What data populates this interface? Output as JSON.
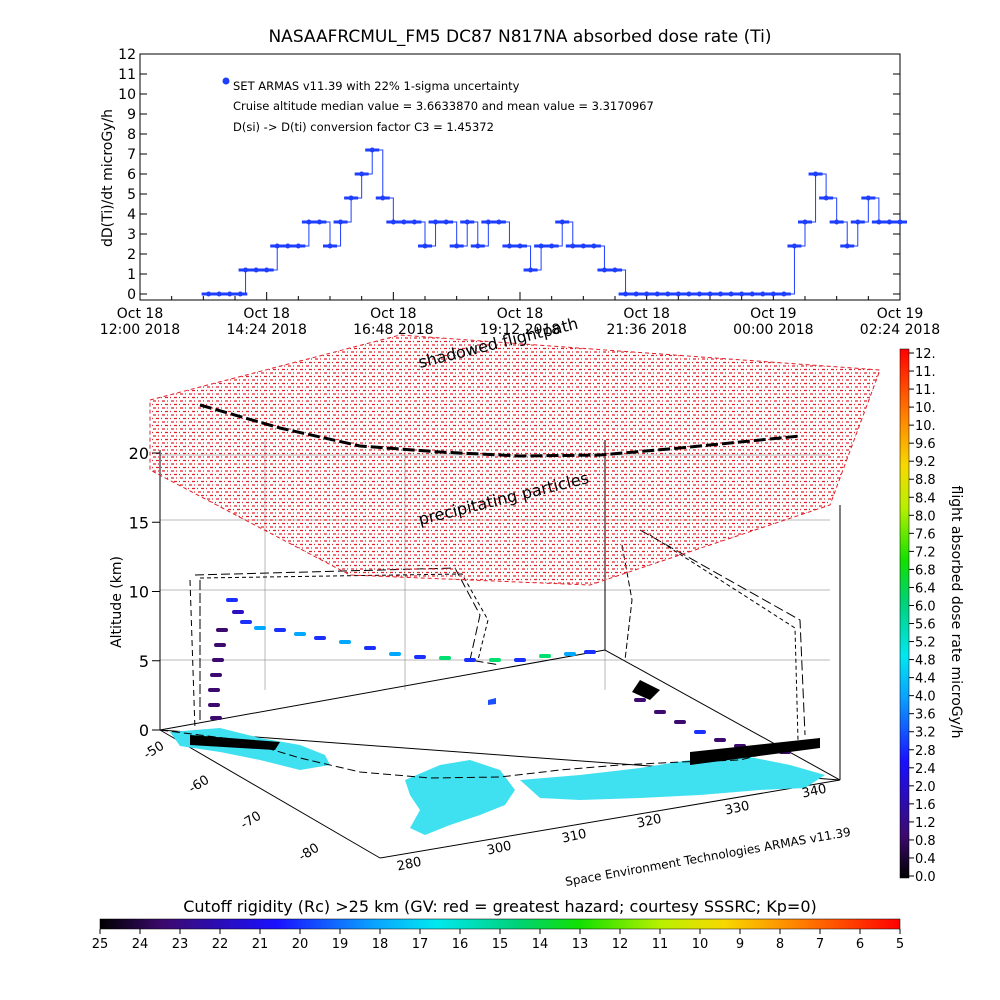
{
  "chart_data": [
    {
      "type": "line",
      "title": "NASAAFRCMUL_FM5 DC87 N817NA absorbed dose rate (Ti)",
      "ylabel": "dD(Ti)/dt microGy/h",
      "ylim": [
        0,
        12
      ],
      "yticks": [
        "0",
        "1",
        "2",
        "3",
        "4",
        "5",
        "6",
        "7",
        "8",
        "9",
        "10",
        "11",
        "12"
      ],
      "xlim": [
        "Oct 18 12:00 2018",
        "Oct 19 02:24 2018"
      ],
      "xticks": [
        {
          "top": "Oct 18",
          "bottom": "12:00 2018"
        },
        {
          "top": "Oct 18",
          "bottom": "14:24 2018"
        },
        {
          "top": "Oct 18",
          "bottom": "16:48 2018"
        },
        {
          "top": "Oct 18",
          "bottom": "19:12 2018"
        },
        {
          "top": "Oct 18",
          "bottom": "21:36 2018"
        },
        {
          "top": "Oct 19",
          "bottom": "00:00 2018"
        },
        {
          "top": "Oct 19",
          "bottom": "02:24 2018"
        }
      ],
      "legend_lines": [
        "SET ARMAS v11.39 with 22% 1-sigma uncertainty",
        "Cruise altitude median value = 3.6633870 and mean value = 3.3170967",
        "D(si) -> D(ti) conversion factor C3 = 1.45372"
      ],
      "series": [
        {
          "name": "SET ARMAS v11.39 with 22% 1-sigma uncertainty",
          "color": "#1f3fff",
          "hours": [
            1.3,
            1.5,
            1.7,
            1.9,
            2.0,
            2.2,
            2.4,
            2.6,
            2.8,
            3.0,
            3.2,
            3.4,
            3.6,
            3.8,
            4.0,
            4.2,
            4.4,
            4.6,
            4.8,
            5.0,
            5.2,
            5.4,
            5.6,
            5.8,
            6.0,
            6.2,
            6.4,
            6.6,
            6.8,
            7.0,
            7.2,
            7.4,
            7.6,
            7.8,
            8.0,
            8.2,
            8.4,
            8.6,
            8.8,
            9.0,
            9.2,
            9.4,
            9.6,
            9.8,
            10.0,
            10.2,
            10.4,
            10.6,
            10.8,
            11.0,
            11.2,
            11.4,
            11.6,
            11.8,
            12.0,
            12.2,
            12.4,
            12.6,
            12.8,
            13.0,
            13.2,
            13.4,
            13.6,
            13.8,
            14.0,
            14.2,
            14.4
          ],
          "values": [
            0,
            0,
            0,
            0,
            1.2,
            1.2,
            1.2,
            2.4,
            2.4,
            2.4,
            3.6,
            3.6,
            2.4,
            3.6,
            4.8,
            6.0,
            7.2,
            4.8,
            3.6,
            3.6,
            3.6,
            2.4,
            3.6,
            3.6,
            2.4,
            3.6,
            2.4,
            3.6,
            3.6,
            2.4,
            2.4,
            1.2,
            2.4,
            2.4,
            3.6,
            2.4,
            2.4,
            2.4,
            1.2,
            1.2,
            0,
            0,
            0,
            0,
            0,
            0,
            0,
            0,
            0,
            0,
            0,
            0,
            0,
            0,
            0,
            0,
            2.4,
            3.6,
            6.0,
            4.8,
            3.6,
            2.4,
            3.6,
            4.8,
            3.6,
            3.6,
            3.6
          ]
        }
      ]
    },
    {
      "type": "scatter",
      "zlabel": "Altitude (km)",
      "zticks": [
        "0",
        "5",
        "10",
        "15",
        "20"
      ],
      "zlim": [
        0,
        22
      ],
      "lat_ticks": [
        "-50",
        "-60",
        "-70",
        "-80"
      ],
      "lon_ticks": [
        "280",
        "300",
        "310",
        "320",
        "330",
        "340"
      ],
      "annotations": [
        "shadowed flightpath",
        "precipitating particles",
        "Space Environment Technologies ARMAS v11.39"
      ],
      "colorbar_right": {
        "label": "flight absorbed dose rate microGy/h",
        "ticks": [
          "12.",
          "11.",
          "11.",
          "10.",
          "10.",
          "9.6",
          "9.2",
          "8.8",
          "8.4",
          "8.0",
          "7.6",
          "7.2",
          "6.8",
          "6.4",
          "6.0",
          "5.6",
          "5.2",
          "4.8",
          "4.4",
          "4.0",
          "3.6",
          "3.2",
          "2.8",
          "2.4",
          "2.0",
          "1.6",
          "1.2",
          "0.8",
          "0.4",
          "0.0"
        ]
      },
      "colorbar_bottom": {
        "label": "Cutoff rigidity (Rc) >25 km (GV: red = greatest hazard; courtesy SSSRC; Kp=0)",
        "ticks": [
          "25",
          "24",
          "23",
          "22",
          "21",
          "20",
          "19",
          "18",
          "17",
          "16",
          "15",
          "14",
          "13",
          "12",
          "11",
          "10",
          "9",
          "8",
          "7",
          "6",
          "5"
        ]
      }
    }
  ]
}
